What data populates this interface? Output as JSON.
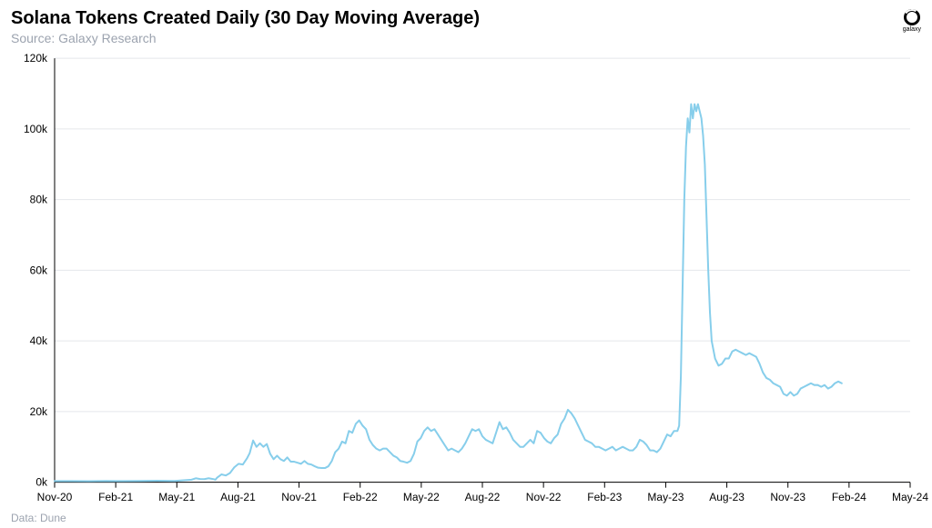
{
  "header": {
    "title": "Solana Tokens Created Daily (30 Day Moving Average)",
    "subtitle": "Source: Galaxy Research",
    "logo_label": "galaxy"
  },
  "footer": {
    "data_source": "Data: Dune"
  },
  "chart": {
    "type": "line",
    "background_color": "#ffffff",
    "grid_color": "#e5e7eb",
    "axis_color": "#000000",
    "line_color": "#87ceeb",
    "line_width": 2,
    "y_axis": {
      "ylim": [
        0,
        120000
      ],
      "ticks": [
        0,
        20000,
        40000,
        60000,
        80000,
        100000,
        120000
      ],
      "tick_labels": [
        "0k",
        "20k",
        "40k",
        "60k",
        "80k",
        "100k",
        "120k"
      ],
      "label_fontsize": 12
    },
    "x_axis": {
      "ticks": [
        "Nov-20",
        "Feb-21",
        "May-21",
        "Aug-21",
        "Nov-21",
        "Feb-22",
        "May-22",
        "Aug-22",
        "Nov-22",
        "Feb-23",
        "May-23",
        "Aug-23",
        "Nov-23",
        "Feb-24",
        "May-24"
      ],
      "label_fontsize": 12
    },
    "series": [
      {
        "name": "Tokens Created Daily (30DMA)",
        "color": "#87ceeb",
        "points": [
          [
            0.0,
            300
          ],
          [
            0.02,
            300
          ],
          [
            0.04,
            280
          ],
          [
            0.06,
            350
          ],
          [
            0.08,
            300
          ],
          [
            0.1,
            350
          ],
          [
            0.12,
            400
          ],
          [
            0.14,
            350
          ],
          [
            0.16,
            700
          ],
          [
            0.165,
            1100
          ],
          [
            0.17,
            900
          ],
          [
            0.175,
            850
          ],
          [
            0.18,
            1100
          ],
          [
            0.185,
            900
          ],
          [
            0.188,
            700
          ],
          [
            0.19,
            1300
          ],
          [
            0.195,
            2200
          ],
          [
            0.2,
            1900
          ],
          [
            0.205,
            2600
          ],
          [
            0.21,
            4200
          ],
          [
            0.215,
            5200
          ],
          [
            0.22,
            5000
          ],
          [
            0.225,
            6800
          ],
          [
            0.228,
            8200
          ],
          [
            0.232,
            11800
          ],
          [
            0.236,
            10000
          ],
          [
            0.24,
            11000
          ],
          [
            0.244,
            10000
          ],
          [
            0.248,
            10800
          ],
          [
            0.252,
            8000
          ],
          [
            0.256,
            6500
          ],
          [
            0.26,
            7500
          ],
          [
            0.264,
            6500
          ],
          [
            0.268,
            6000
          ],
          [
            0.272,
            7000
          ],
          [
            0.276,
            5800
          ],
          [
            0.28,
            5800
          ],
          [
            0.284,
            5500
          ],
          [
            0.288,
            5200
          ],
          [
            0.292,
            6000
          ],
          [
            0.296,
            5200
          ],
          [
            0.3,
            5000
          ],
          [
            0.304,
            4500
          ],
          [
            0.308,
            4100
          ],
          [
            0.312,
            4000
          ],
          [
            0.316,
            4000
          ],
          [
            0.32,
            4500
          ],
          [
            0.324,
            6000
          ],
          [
            0.328,
            8500
          ],
          [
            0.332,
            9500
          ],
          [
            0.336,
            11500
          ],
          [
            0.34,
            11000
          ],
          [
            0.344,
            14500
          ],
          [
            0.348,
            14000
          ],
          [
            0.352,
            16500
          ],
          [
            0.356,
            17500
          ],
          [
            0.36,
            16000
          ],
          [
            0.364,
            15000
          ],
          [
            0.368,
            12000
          ],
          [
            0.372,
            10500
          ],
          [
            0.376,
            9500
          ],
          [
            0.38,
            9000
          ],
          [
            0.384,
            9500
          ],
          [
            0.388,
            9500
          ],
          [
            0.392,
            8500
          ],
          [
            0.396,
            7500
          ],
          [
            0.4,
            7000
          ],
          [
            0.404,
            6000
          ],
          [
            0.408,
            5800
          ],
          [
            0.412,
            5500
          ],
          [
            0.416,
            6000
          ],
          [
            0.42,
            8000
          ],
          [
            0.424,
            11500
          ],
          [
            0.428,
            12500
          ],
          [
            0.432,
            14500
          ],
          [
            0.436,
            15500
          ],
          [
            0.44,
            14500
          ],
          [
            0.444,
            15000
          ],
          [
            0.448,
            13500
          ],
          [
            0.452,
            12000
          ],
          [
            0.456,
            10500
          ],
          [
            0.46,
            9000
          ],
          [
            0.464,
            9500
          ],
          [
            0.468,
            9000
          ],
          [
            0.472,
            8500
          ],
          [
            0.476,
            9500
          ],
          [
            0.48,
            11000
          ],
          [
            0.484,
            13000
          ],
          [
            0.488,
            15000
          ],
          [
            0.492,
            14500
          ],
          [
            0.496,
            15000
          ],
          [
            0.5,
            13000
          ],
          [
            0.504,
            12000
          ],
          [
            0.508,
            11500
          ],
          [
            0.512,
            11000
          ],
          [
            0.516,
            14000
          ],
          [
            0.52,
            17000
          ],
          [
            0.524,
            15000
          ],
          [
            0.528,
            15500
          ],
          [
            0.532,
            14000
          ],
          [
            0.536,
            12000
          ],
          [
            0.54,
            11000
          ],
          [
            0.544,
            10000
          ],
          [
            0.548,
            10000
          ],
          [
            0.552,
            11000
          ],
          [
            0.556,
            12000
          ],
          [
            0.56,
            11000
          ],
          [
            0.564,
            14500
          ],
          [
            0.568,
            14000
          ],
          [
            0.572,
            12500
          ],
          [
            0.576,
            11500
          ],
          [
            0.58,
            11000
          ],
          [
            0.584,
            12500
          ],
          [
            0.588,
            13500
          ],
          [
            0.592,
            16500
          ],
          [
            0.596,
            18000
          ],
          [
            0.6,
            20500
          ],
          [
            0.604,
            19500
          ],
          [
            0.608,
            18000
          ],
          [
            0.612,
            16000
          ],
          [
            0.616,
            14000
          ],
          [
            0.62,
            12000
          ],
          [
            0.624,
            11500
          ],
          [
            0.628,
            11000
          ],
          [
            0.632,
            10000
          ],
          [
            0.636,
            10000
          ],
          [
            0.64,
            9500
          ],
          [
            0.644,
            9000
          ],
          [
            0.648,
            9500
          ],
          [
            0.652,
            10000
          ],
          [
            0.656,
            9000
          ],
          [
            0.66,
            9500
          ],
          [
            0.664,
            10000
          ],
          [
            0.668,
            9500
          ],
          [
            0.672,
            9000
          ],
          [
            0.676,
            9000
          ],
          [
            0.68,
            10000
          ],
          [
            0.684,
            12000
          ],
          [
            0.688,
            11500
          ],
          [
            0.692,
            10500
          ],
          [
            0.696,
            9000
          ],
          [
            0.7,
            9000
          ],
          [
            0.704,
            8500
          ],
          [
            0.708,
            9500
          ],
          [
            0.712,
            11500
          ],
          [
            0.716,
            13500
          ],
          [
            0.72,
            13000
          ],
          [
            0.724,
            14500
          ],
          [
            0.728,
            14500
          ],
          [
            0.73,
            16000
          ],
          [
            0.732,
            30000
          ],
          [
            0.734,
            55000
          ],
          [
            0.736,
            80000
          ],
          [
            0.738,
            95000
          ],
          [
            0.74,
            103000
          ],
          [
            0.742,
            99000
          ],
          [
            0.744,
            107000
          ],
          [
            0.746,
            103000
          ],
          [
            0.748,
            107000
          ],
          [
            0.75,
            105000
          ],
          [
            0.752,
            107000
          ],
          [
            0.754,
            105000
          ],
          [
            0.756,
            103000
          ],
          [
            0.758,
            98000
          ],
          [
            0.76,
            90000
          ],
          [
            0.762,
            75000
          ],
          [
            0.764,
            60000
          ],
          [
            0.766,
            48000
          ],
          [
            0.768,
            40000
          ],
          [
            0.772,
            35000
          ],
          [
            0.776,
            33000
          ],
          [
            0.78,
            33500
          ],
          [
            0.784,
            35000
          ],
          [
            0.788,
            35000
          ],
          [
            0.792,
            37000
          ],
          [
            0.796,
            37500
          ],
          [
            0.8,
            37000
          ],
          [
            0.804,
            36500
          ],
          [
            0.808,
            36000
          ],
          [
            0.812,
            36500
          ],
          [
            0.816,
            36000
          ],
          [
            0.82,
            35500
          ],
          [
            0.824,
            33500
          ],
          [
            0.828,
            31000
          ],
          [
            0.832,
            29500
          ],
          [
            0.836,
            29000
          ],
          [
            0.84,
            28000
          ],
          [
            0.844,
            27500
          ],
          [
            0.848,
            27000
          ],
          [
            0.852,
            25000
          ],
          [
            0.856,
            24500
          ],
          [
            0.86,
            25500
          ],
          [
            0.864,
            24500
          ],
          [
            0.868,
            25000
          ],
          [
            0.872,
            26500
          ],
          [
            0.876,
            27000
          ],
          [
            0.88,
            27500
          ],
          [
            0.884,
            28000
          ],
          [
            0.888,
            27500
          ],
          [
            0.892,
            27500
          ],
          [
            0.896,
            27000
          ],
          [
            0.9,
            27500
          ],
          [
            0.904,
            26500
          ],
          [
            0.908,
            27000
          ],
          [
            0.912,
            28000
          ],
          [
            0.916,
            28500
          ],
          [
            0.92,
            28000
          ]
        ]
      }
    ]
  }
}
